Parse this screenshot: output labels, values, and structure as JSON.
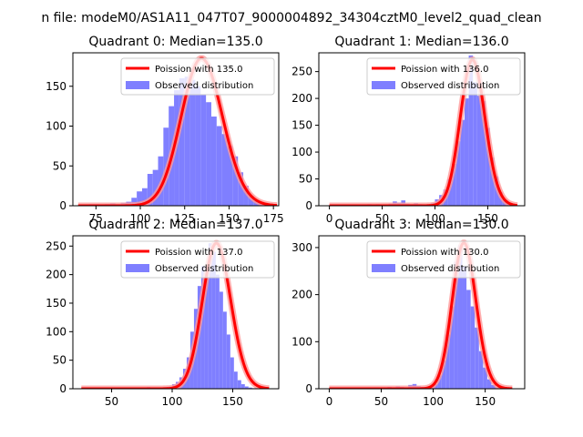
{
  "suptitle": "n file: modeM0/AS1A11_047T07_9000004892_34304cztM0_level2_quad_clean",
  "colors": {
    "hist": "#7f7fff",
    "curve": "#ff0000",
    "curve_glow": "#ff9a9a",
    "axis": "#000000"
  },
  "chart_data": [
    {
      "type": "bar",
      "title": "Quadrant 0: Median=135.0",
      "xlim": [
        62,
        178
      ],
      "ylim": [
        0,
        192
      ],
      "xticks": [
        75,
        100,
        125,
        150,
        175
      ],
      "yticks": [
        0,
        50,
        100,
        150
      ],
      "legend": {
        "position": "top-right",
        "line_label": "Poission with 135.0",
        "bar_label": "Observed distribution"
      },
      "bins": {
        "start": 65,
        "width": 3,
        "counts": [
          1,
          1,
          2,
          2,
          1,
          2,
          3,
          2,
          4,
          5,
          10,
          18,
          22,
          40,
          45,
          62,
          98,
          125,
          145,
          160,
          162,
          158,
          150,
          140,
          130,
          112,
          100,
          90,
          75,
          62,
          42,
          25,
          12,
          6,
          3,
          1
        ]
      },
      "poisson": {
        "mean": 135.0,
        "scale": 185,
        "x_range": [
          65,
          177
        ]
      }
    },
    {
      "type": "bar",
      "title": "Quadrant 1: Median=136.0",
      "xlim": [
        -10,
        185
      ],
      "ylim": [
        0,
        285
      ],
      "xticks": [
        0,
        50,
        100,
        150
      ],
      "yticks": [
        0,
        50,
        100,
        150,
        200,
        250
      ],
      "legend": {
        "position": "top-right",
        "line_label": "Poission with 136.0",
        "bar_label": "Observed distribution"
      },
      "bins": {
        "start": 0,
        "width": 4,
        "counts": [
          0,
          1,
          0,
          1,
          0,
          1,
          0,
          2,
          1,
          3,
          0,
          3,
          2,
          2,
          4,
          8,
          6,
          10,
          4,
          3,
          5,
          3,
          2,
          3,
          5,
          12,
          20,
          30,
          50,
          78,
          120,
          160,
          200,
          280,
          230,
          205,
          195,
          145,
          90,
          55,
          25,
          12,
          5,
          2,
          1
        ]
      },
      "poisson": {
        "mean": 136.0,
        "scale": 272,
        "x_range": [
          0,
          178
        ]
      }
    },
    {
      "type": "bar",
      "title": "Quadrant 2: Median=137.0",
      "xlim": [
        18,
        188
      ],
      "ylim": [
        0,
        268
      ],
      "xticks": [
        50,
        100,
        150
      ],
      "yticks": [
        0,
        50,
        100,
        150,
        200,
        250
      ],
      "legend": {
        "position": "top-right",
        "line_label": "Poission with 137.0",
        "bar_label": "Observed distribution"
      },
      "bins": {
        "start": 25,
        "width": 3,
        "counts": [
          0,
          0,
          1,
          0,
          0,
          1,
          0,
          1,
          0,
          1,
          0,
          1,
          0,
          0,
          1,
          0,
          0,
          1,
          3,
          2,
          2,
          1,
          2,
          3,
          4,
          8,
          12,
          20,
          35,
          55,
          100,
          140,
          180,
          215,
          200,
          255,
          240,
          200,
          170,
          135,
          95,
          55,
          30,
          15,
          8,
          4,
          2,
          1,
          1,
          0,
          0,
          0
        ]
      },
      "poisson": {
        "mean": 137.0,
        "scale": 255,
        "x_range": [
          25,
          180
        ]
      }
    },
    {
      "type": "bar",
      "title": "Quadrant 3: Median=130.0",
      "xlim": [
        -10,
        188
      ],
      "ylim": [
        0,
        325
      ],
      "xticks": [
        0,
        50,
        100,
        150
      ],
      "yticks": [
        0,
        100,
        200,
        300
      ],
      "legend": {
        "position": "top-right",
        "line_label": "Poission with 130.0",
        "bar_label": "Observed distribution"
      },
      "bins": {
        "start": 0,
        "width": 4,
        "counts": [
          0,
          1,
          0,
          1,
          0,
          1,
          0,
          2,
          1,
          3,
          0,
          3,
          2,
          2,
          4,
          3,
          5,
          4,
          3,
          8,
          10,
          6,
          4,
          3,
          5,
          10,
          28,
          60,
          115,
          175,
          270,
          305,
          260,
          210,
          175,
          130,
          80,
          45,
          20,
          8,
          3,
          1,
          0,
          0,
          0
        ]
      },
      "poisson": {
        "mean": 130.0,
        "scale": 310,
        "x_range": [
          0,
          176
        ]
      }
    }
  ]
}
